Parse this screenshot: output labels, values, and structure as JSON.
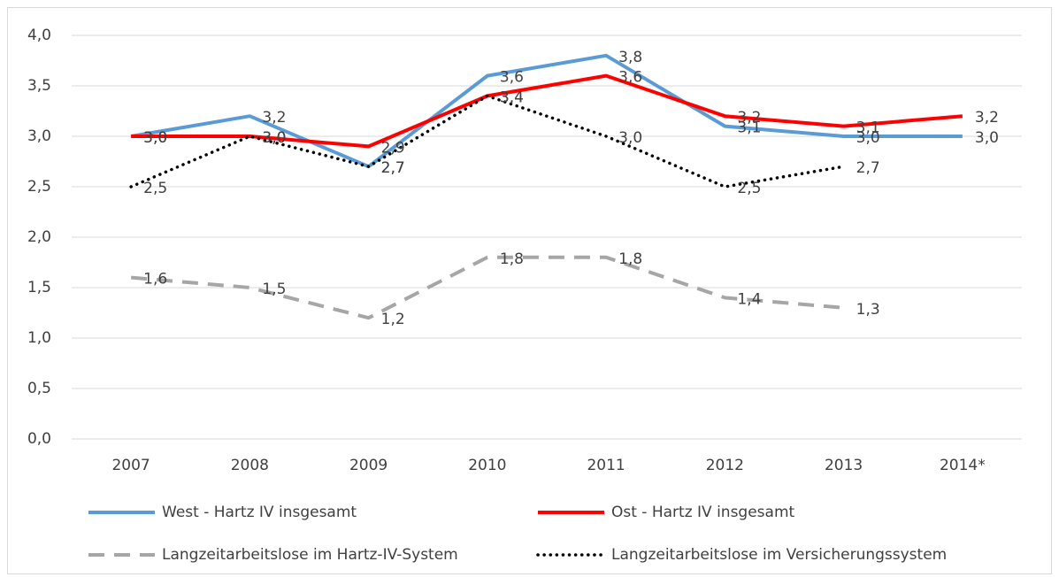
{
  "chart_data": {
    "type": "line",
    "categories": [
      "2007",
      "2008",
      "2009",
      "2010",
      "2011",
      "2012",
      "2013",
      "2014*"
    ],
    "ylim": [
      0,
      4
    ],
    "yticks": [
      {
        "value": 0,
        "label": "0,0"
      },
      {
        "value": 0.5,
        "label": "0,5"
      },
      {
        "value": 1,
        "label": "1,0"
      },
      {
        "value": 1.5,
        "label": "1,5"
      },
      {
        "value": 2,
        "label": "2,0"
      },
      {
        "value": 2.5,
        "label": "2,5"
      },
      {
        "value": 3,
        "label": "3,0"
      },
      {
        "value": 3.5,
        "label": "3,5"
      },
      {
        "value": 4,
        "label": "4,0"
      }
    ],
    "grid": true,
    "legend": "bottom",
    "series": [
      {
        "name": "West - Hartz IV insgesamt",
        "color": "#5b9bd5",
        "dash": "solid",
        "values": [
          3.0,
          3.2,
          2.7,
          3.6,
          3.8,
          3.1,
          3.0,
          3.0
        ],
        "value_labels": [
          "3,0",
          "3,2",
          "2,7",
          "3,6",
          "3,8",
          "3,1",
          "3,0",
          "3,0"
        ]
      },
      {
        "name": "Ost - Hartz IV insgesamt",
        "color": "#ff0000",
        "dash": "solid",
        "values": [
          3.0,
          3.0,
          2.9,
          3.4,
          3.6,
          3.2,
          3.1,
          3.2
        ],
        "value_labels": [
          "3,0",
          "3,0",
          "2,9",
          "3,4",
          "3,6",
          "3,2",
          "3,1",
          "3,2"
        ]
      },
      {
        "name": "Langzeitarbeitslose im Hartz-IV-System",
        "color": "#a6a6a6",
        "dash": "dashed",
        "values": [
          1.6,
          1.5,
          1.2,
          1.8,
          1.8,
          1.4,
          1.3,
          null
        ],
        "value_labels": [
          "1,6",
          "1,5",
          "1,2",
          "1,8",
          "1,8",
          "1,4",
          "1,3",
          null
        ]
      },
      {
        "name": "Langzeitarbeitslose im Versicherungssystem",
        "color": "#000000",
        "dash": "dotted",
        "values": [
          2.5,
          3.0,
          2.7,
          3.4,
          3.0,
          2.5,
          2.7,
          null
        ],
        "value_labels": [
          "2,5",
          "3,0",
          "2,7",
          "3,4",
          "3,0",
          "2,5",
          "2,7",
          null
        ]
      }
    ]
  }
}
